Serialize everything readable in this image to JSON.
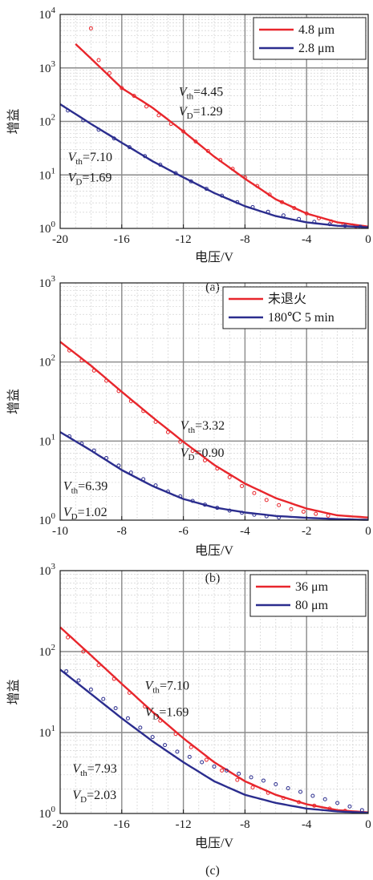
{
  "colors": {
    "red": "#e8262c",
    "blue": "#2b2d8e",
    "major_grid": "#8a8a8a",
    "minor_grid": "#d2d2d2"
  },
  "chart_data": [
    {
      "type": "line",
      "caption": "(a)",
      "xlabel": "电压/V",
      "ylabel": "增益",
      "yscale": "log",
      "xlim": [
        -20,
        0
      ],
      "ylim": [
        1,
        10000
      ],
      "x_ticks": [
        -20,
        -16,
        -12,
        -8,
        -4,
        0
      ],
      "x_tick_labels": [
        "-20",
        "-16",
        "-12",
        "-8",
        "-4",
        "0"
      ],
      "y_tick_labels": [
        {
          "base": "10",
          "exp": "0"
        },
        {
          "base": "10",
          "exp": "1"
        },
        {
          "base": "10",
          "exp": "2"
        },
        {
          "base": "10",
          "exp": "3"
        },
        {
          "base": "10",
          "exp": "4"
        }
      ],
      "grid": true,
      "legend_position": "top-right",
      "series": [
        {
          "name": "4.8 μm",
          "color": "#e8262c",
          "fit": {
            "x": [
              -19,
              -18,
              -16,
              -14,
              -12,
              -10,
              -8,
              -6,
              -4,
              -2,
              0
            ],
            "y": [
              2800,
              1500,
              420,
              180,
              65,
              22,
              8.5,
              3.5,
              1.9,
              1.3,
              1.08
            ]
          },
          "measured": {
            "x": [
              -18,
              -17.5,
              -16.8,
              -16,
              -15.2,
              -14.4,
              -13.6,
              -12.8,
              -12,
              -11.2,
              -10.4,
              -9.6,
              -8.8,
              -8,
              -7.2,
              -6.4,
              -5.6,
              -4.8,
              -4,
              -3.2,
              -2.4,
              -1.6,
              -0.8
            ],
            "y": [
              5500,
              1400,
              800,
              420,
              300,
              190,
              130,
              90,
              65,
              42,
              28,
              19,
              13,
              9,
              6.2,
              4.3,
              3.1,
              2.4,
              1.9,
              1.55,
              1.35,
              1.2,
              1.1
            ]
          }
        },
        {
          "name": "2.8 μm",
          "color": "#2b2d8e",
          "fit": {
            "x": [
              -20,
              -18,
              -16,
              -14,
              -12,
              -10,
              -8,
              -6,
              -4,
              -2,
              0
            ],
            "y": [
              210,
              90,
              40,
              18,
              9,
              4.6,
              2.6,
              1.7,
              1.3,
              1.12,
              1.05
            ]
          },
          "measured": {
            "x": [
              -19.5,
              -18.5,
              -17.5,
              -16.5,
              -15.5,
              -14.5,
              -13.5,
              -12.5,
              -11.5,
              -10.5,
              -9.5,
              -8.5,
              -7.5,
              -6.5,
              -5.5,
              -4.5,
              -3.5,
              -2.5,
              -1.5,
              -0.5
            ],
            "y": [
              160,
              105,
              70,
              48,
              33,
              22.5,
              15.5,
              10.8,
              7.6,
              5.5,
              4.1,
              3.1,
              2.5,
              2.05,
              1.75,
              1.5,
              1.33,
              1.2,
              1.12,
              1.07
            ]
          }
        }
      ],
      "annotations": [
        {
          "v": "V",
          "sub": "th",
          "text": "=4.45",
          "x": -12.3,
          "y": 300
        },
        {
          "v": "V",
          "sub": "D",
          "text": "=1.29",
          "x": -12.3,
          "y": 130
        },
        {
          "v": "V",
          "sub": "th",
          "text": "=7.10",
          "x": -19.5,
          "y": 18
        },
        {
          "v": "V",
          "sub": "D",
          "text": "=1.69",
          "x": -19.5,
          "y": 7.5
        }
      ]
    },
    {
      "type": "line",
      "caption": "(b)",
      "xlabel": "电压/V",
      "ylabel": "增益",
      "yscale": "log",
      "xlim": [
        -10,
        0
      ],
      "ylim": [
        1,
        1000
      ],
      "x_ticks": [
        -10,
        -8,
        -6,
        -4,
        -2,
        0
      ],
      "x_tick_labels": [
        "-10",
        "-8",
        "-6",
        "-4",
        "-2",
        "0"
      ],
      "y_tick_labels": [
        {
          "base": "10",
          "exp": "0"
        },
        {
          "base": "10",
          "exp": "1"
        },
        {
          "base": "10",
          "exp": "2"
        },
        {
          "base": "10",
          "exp": "3"
        }
      ],
      "grid": true,
      "legend_position": "top-right",
      "series": [
        {
          "name": "未退火",
          "color": "#e8262c",
          "fit": {
            "x": [
              -10,
              -9,
              -8,
              -7,
              -6,
              -5,
              -4,
              -3,
              -2,
              -1,
              0
            ],
            "y": [
              180,
              90,
              42,
              20,
              9.8,
              5,
              2.9,
              1.9,
              1.4,
              1.15,
              1.08
            ]
          },
          "measured": {
            "x": [
              -9.7,
              -9.3,
              -8.9,
              -8.5,
              -8.1,
              -7.7,
              -7.3,
              -6.9,
              -6.5,
              -6.1,
              -5.7,
              -5.3,
              -4.9,
              -4.5,
              -4.1,
              -3.7,
              -3.3,
              -2.9,
              -2.5,
              -2.1,
              -1.7,
              -1.3
            ],
            "y": [
              140,
              105,
              78,
              58,
              43,
              32,
              24,
              17.5,
              13,
              9.8,
              7.5,
              5.7,
              4.5,
              3.5,
              2.7,
              2.2,
              1.8,
              1.55,
              1.38,
              1.28,
              1.2,
              1.14
            ]
          }
        },
        {
          "name": "180℃ 5 min",
          "color": "#2b2d8e",
          "fit": {
            "x": [
              -10,
              -9,
              -8,
              -7,
              -6,
              -5,
              -4,
              -3,
              -2,
              -1,
              0
            ],
            "y": [
              13,
              7.6,
              4.3,
              2.7,
              1.85,
              1.45,
              1.25,
              1.13,
              1.07,
              1.03,
              1.01
            ]
          },
          "measured": {
            "x": [
              -9.7,
              -9.3,
              -8.9,
              -8.5,
              -8.1,
              -7.7,
              -7.3,
              -6.9,
              -6.5,
              -6.1,
              -5.7,
              -5.3,
              -4.9,
              -4.5,
              -4.1,
              -3.7,
              -3.3,
              -2.9
            ],
            "y": [
              11.5,
              9.3,
              7.6,
              6.1,
              4.9,
              4,
              3.3,
              2.75,
              2.3,
              2,
              1.75,
              1.57,
              1.43,
              1.32,
              1.24,
              1.17,
              1.12,
              1.08
            ]
          }
        }
      ],
      "annotations": [
        {
          "v": "V",
          "sub": "th",
          "text": "=3.32",
          "x": -6.1,
          "y": 14
        },
        {
          "v": "V",
          "sub": "D",
          "text": "=0.90",
          "x": -6.1,
          "y": 6.3
        },
        {
          "v": "V",
          "sub": "th",
          "text": "=6.39",
          "x": -9.9,
          "y": 2.4
        },
        {
          "v": "V",
          "sub": "D",
          "text": "=1.02",
          "x": -9.9,
          "y": 1.12
        }
      ]
    },
    {
      "type": "line",
      "caption": "(c)",
      "xlabel": "电压/V",
      "ylabel": "增益",
      "yscale": "log",
      "xlim": [
        -20,
        0
      ],
      "ylim": [
        1,
        1000
      ],
      "x_ticks": [
        -20,
        -16,
        -12,
        -8,
        -4,
        0
      ],
      "x_tick_labels": [
        "-20",
        "-16",
        "-12",
        "-8",
        "-4",
        "0"
      ],
      "y_tick_labels": [
        {
          "base": "10",
          "exp": "0"
        },
        {
          "base": "10",
          "exp": "1"
        },
        {
          "base": "10",
          "exp": "2"
        },
        {
          "base": "10",
          "exp": "3"
        }
      ],
      "grid": true,
      "legend_position": "top-right",
      "series": [
        {
          "name": "36 μm",
          "color": "#e8262c",
          "fit": {
            "x": [
              -20,
              -18,
              -16,
              -14,
              -12,
              -10,
              -8,
              -6,
              -4,
              -2,
              0
            ],
            "y": [
              200,
              90,
              40,
              18,
              8.5,
              4.3,
              2.5,
              1.7,
              1.3,
              1.1,
              1.03
            ]
          },
          "measured": {
            "x": [
              -19.5,
              -18.5,
              -17.5,
              -16.5,
              -15.5,
              -14.5,
              -13.5,
              -12.5,
              -11.5,
              -10.5,
              -9.5,
              -8.5,
              -7.5,
              -6.5,
              -5.5,
              -4.5,
              -3.5,
              -2.5,
              -1.5
            ],
            "y": [
              150,
              100,
              68,
              46,
              31,
              21,
              14,
              9.6,
              6.6,
              4.6,
              3.4,
              2.6,
              2.1,
              1.8,
              1.55,
              1.38,
              1.25,
              1.15,
              1.08
            ]
          }
        },
        {
          "name": "80 μm",
          "color": "#2b2d8e",
          "fit": {
            "x": [
              -20,
              -18,
              -16,
              -14,
              -12,
              -10,
              -8,
              -6,
              -4,
              -2,
              0
            ],
            "y": [
              60,
              30,
              15,
              7.8,
              4.3,
              2.5,
              1.7,
              1.35,
              1.15,
              1.06,
              1.02
            ]
          },
          "measured": {
            "x": [
              -19.6,
              -18.8,
              -18,
              -17.2,
              -16.4,
              -15.6,
              -14.8,
              -14,
              -13.2,
              -12.4,
              -11.6,
              -10.8,
              -10,
              -9.2,
              -8.4,
              -7.6,
              -6.8,
              -6,
              -5.2,
              -4.4,
              -3.6,
              -2.8,
              -2,
              -1.2,
              -0.4
            ],
            "y": [
              57,
              44,
              34,
              26,
              20,
              15,
              11.5,
              8.8,
              7,
              5.8,
              5,
              4.3,
              3.8,
              3.4,
              3.1,
              2.8,
              2.55,
              2.3,
              2.05,
              1.85,
              1.65,
              1.5,
              1.35,
              1.22,
              1.1
            ]
          }
        }
      ],
      "annotations": [
        {
          "v": "V",
          "sub": "th",
          "text": "=7.10",
          "x": -14.5,
          "y": 34
        },
        {
          "v": "V",
          "sub": "D",
          "text": "=1.69",
          "x": -14.5,
          "y": 16
        },
        {
          "v": "V",
          "sub": "th",
          "text": "=7.93",
          "x": -19.2,
          "y": 3.2
        },
        {
          "v": "V",
          "sub": "D",
          "text": "=2.03",
          "x": -19.2,
          "y": 1.5
        }
      ]
    }
  ]
}
